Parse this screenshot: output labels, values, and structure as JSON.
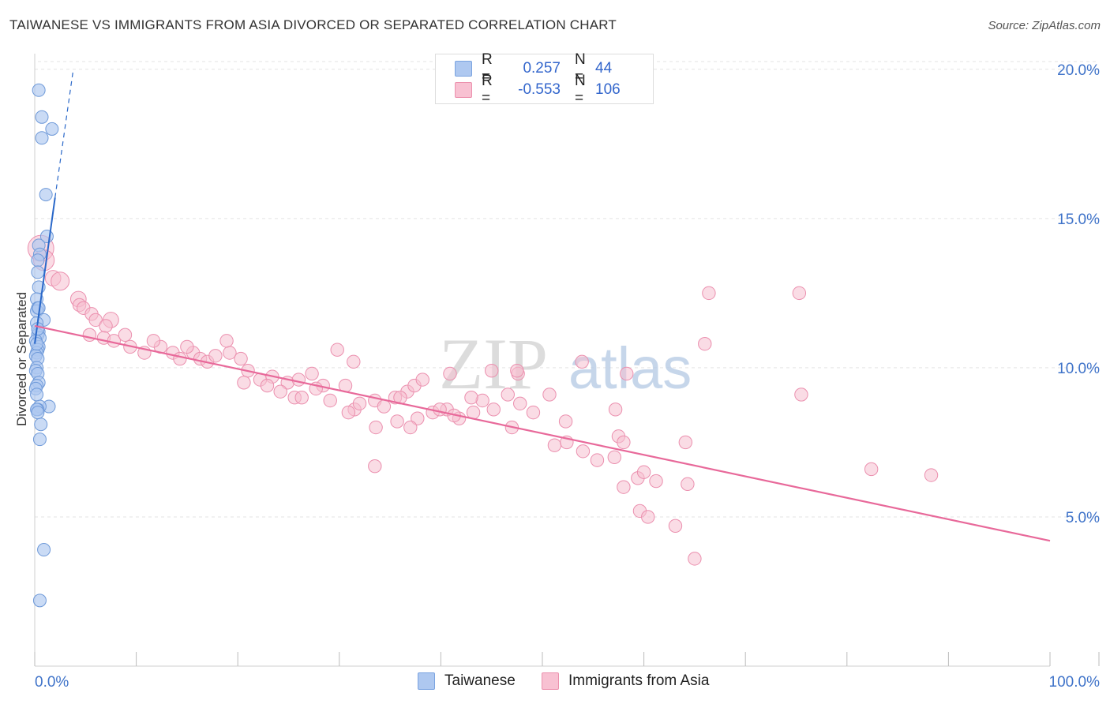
{
  "title": "TAIWANESE VS IMMIGRANTS FROM ASIA DIVORCED OR SEPARATED CORRELATION CHART",
  "source": "Source: ZipAtlas.com",
  "watermark": {
    "part1": "ZIP",
    "part2": "atlas"
  },
  "legend": {
    "r_label": "R =",
    "n_label": "N =",
    "rows": [
      {
        "r": "0.257",
        "n": "44",
        "color": "#aec8f0",
        "border": "#7aa3e0"
      },
      {
        "r": "-0.553",
        "n": "106",
        "color": "#f8c1d2",
        "border": "#ec90ad"
      }
    ]
  },
  "bottom_legend": [
    {
      "label": "Taiwanese",
      "color": "#aec8f0",
      "border": "#7aa3e0"
    },
    {
      "label": "Immigrants from Asia",
      "color": "#f8c1d2",
      "border": "#ec90ad"
    }
  ],
  "colors": {
    "blue_point": "#aec8f0",
    "blue_stroke": "#6f9ad9",
    "blue_line": "#2a68c9",
    "pink_point": "#f6bfd0",
    "pink_stroke": "#eb8fae",
    "pink_line": "#e8699a",
    "axis_text": "#3f73c9",
    "grid": "#e3e3e3"
  },
  "chart_data": {
    "type": "scatter",
    "title": "TAIWANESE VS IMMIGRANTS FROM ASIA DIVORCED OR SEPARATED CORRELATION CHART",
    "xlabel": "",
    "ylabel": "Divorced or Separated",
    "xlim": [
      0,
      100
    ],
    "ylim": [
      0,
      21
    ],
    "x_tick_labels": [
      "0.0%",
      "100.0%"
    ],
    "y_ticks": [
      5,
      10,
      15,
      20
    ],
    "y_tick_labels": [
      "5.0%",
      "10.0%",
      "15.0%",
      "20.0%"
    ],
    "series": [
      {
        "name": "Taiwanese",
        "r": 0.257,
        "n": 44,
        "trend": {
          "x0": 0.0,
          "y0": 10.8,
          "x1": 2.0,
          "y1": 15.7,
          "dash_x1": 3.8,
          "dash_y1": 20.0
        },
        "points": [
          [
            0.4,
            19.3,
            8
          ],
          [
            0.7,
            18.4,
            8
          ],
          [
            1.7,
            18.0,
            8
          ],
          [
            0.7,
            17.7,
            8
          ],
          [
            1.1,
            15.8,
            8
          ],
          [
            1.2,
            14.4,
            8
          ],
          [
            0.4,
            14.1,
            8
          ],
          [
            0.5,
            13.8,
            8
          ],
          [
            0.3,
            13.6,
            8
          ],
          [
            0.3,
            13.2,
            8
          ],
          [
            0.4,
            12.7,
            8
          ],
          [
            0.2,
            12.3,
            8
          ],
          [
            0.3,
            12.0,
            8
          ],
          [
            0.2,
            11.9,
            8
          ],
          [
            0.9,
            11.6,
            8
          ],
          [
            0.2,
            11.5,
            8
          ],
          [
            0.4,
            11.2,
            8
          ],
          [
            0.3,
            11.1,
            8
          ],
          [
            0.5,
            11.0,
            8
          ],
          [
            0.1,
            10.9,
            8
          ],
          [
            0.4,
            10.7,
            8
          ],
          [
            0.3,
            10.6,
            8
          ],
          [
            0.2,
            10.5,
            8
          ],
          [
            0.1,
            10.4,
            8
          ],
          [
            0.3,
            10.3,
            8
          ],
          [
            0.2,
            10.0,
            8
          ],
          [
            0.1,
            9.9,
            8
          ],
          [
            0.3,
            9.8,
            8
          ],
          [
            0.4,
            9.5,
            8
          ],
          [
            0.2,
            9.4,
            8
          ],
          [
            0.1,
            9.3,
            8
          ],
          [
            1.4,
            8.7,
            8
          ],
          [
            0.5,
            8.7,
            8
          ],
          [
            0.3,
            8.6,
            8
          ],
          [
            0.2,
            8.6,
            8
          ],
          [
            0.6,
            8.1,
            8
          ],
          [
            0.5,
            7.6,
            8
          ],
          [
            0.9,
            3.9,
            8
          ],
          [
            0.5,
            2.2,
            8
          ],
          [
            0.2,
            9.1,
            8
          ],
          [
            0.3,
            8.5,
            8
          ],
          [
            0.4,
            12.0,
            8
          ],
          [
            0.2,
            10.8,
            8
          ],
          [
            0.3,
            11.3,
            8
          ]
        ]
      },
      {
        "name": "Immigrants from Asia",
        "r": -0.553,
        "n": 106,
        "trend": {
          "x0": 0.0,
          "y0": 11.4,
          "x1": 100.0,
          "y1": 4.2
        },
        "points": [
          [
            0.6,
            14.0,
            20
          ],
          [
            0.9,
            13.6,
            16
          ],
          [
            1.8,
            13.0,
            12
          ],
          [
            2.5,
            12.9,
            14
          ],
          [
            4.3,
            12.3,
            12
          ],
          [
            4.4,
            12.1,
            10
          ],
          [
            4.8,
            12.0,
            10
          ],
          [
            5.6,
            11.8,
            10
          ],
          [
            6.0,
            11.6,
            10
          ],
          [
            7.5,
            11.6,
            12
          ],
          [
            7.0,
            11.4,
            10
          ],
          [
            5.4,
            11.1,
            10
          ],
          [
            6.8,
            11.0,
            10
          ],
          [
            7.8,
            10.9,
            10
          ],
          [
            8.9,
            11.1,
            10
          ],
          [
            9.4,
            10.7,
            10
          ],
          [
            10.8,
            10.5,
            10
          ],
          [
            12.4,
            10.7,
            10
          ],
          [
            13.6,
            10.5,
            10
          ],
          [
            11.7,
            10.9,
            10
          ],
          [
            14.3,
            10.3,
            10
          ],
          [
            15.6,
            10.5,
            10
          ],
          [
            16.3,
            10.3,
            10
          ],
          [
            15.0,
            10.7,
            10
          ],
          [
            17.0,
            10.2,
            10
          ],
          [
            17.8,
            10.4,
            10
          ],
          [
            19.2,
            10.5,
            10
          ],
          [
            18.9,
            10.9,
            10
          ],
          [
            20.3,
            10.3,
            10
          ],
          [
            21.0,
            9.9,
            10
          ],
          [
            22.2,
            9.6,
            10
          ],
          [
            23.4,
            9.7,
            10
          ],
          [
            24.9,
            9.5,
            10
          ],
          [
            26.0,
            9.6,
            10
          ],
          [
            27.3,
            9.8,
            10
          ],
          [
            24.2,
            9.2,
            10
          ],
          [
            22.9,
            9.4,
            10
          ],
          [
            20.6,
            9.5,
            10
          ],
          [
            25.6,
            9.0,
            10
          ],
          [
            28.4,
            9.4,
            10
          ],
          [
            29.1,
            8.9,
            10
          ],
          [
            29.8,
            10.6,
            10
          ],
          [
            30.6,
            9.4,
            10
          ],
          [
            31.5,
            8.6,
            10
          ],
          [
            32.0,
            8.8,
            10
          ],
          [
            33.5,
            8.9,
            10
          ],
          [
            34.4,
            8.7,
            10
          ],
          [
            35.5,
            9.0,
            10
          ],
          [
            36.7,
            9.2,
            10
          ],
          [
            37.4,
            9.4,
            10
          ],
          [
            38.2,
            9.6,
            10
          ],
          [
            39.2,
            8.5,
            10
          ],
          [
            40.6,
            8.6,
            10
          ],
          [
            41.8,
            8.3,
            10
          ],
          [
            43.2,
            8.5,
            10
          ],
          [
            44.1,
            8.9,
            10
          ],
          [
            45.2,
            8.6,
            10
          ],
          [
            46.6,
            9.1,
            10
          ],
          [
            47.8,
            8.8,
            10
          ],
          [
            49.1,
            8.5,
            10
          ],
          [
            35.7,
            8.2,
            10
          ],
          [
            37.7,
            8.3,
            10
          ],
          [
            39.9,
            8.6,
            10
          ],
          [
            41.3,
            8.4,
            10
          ],
          [
            43.0,
            9.0,
            10
          ],
          [
            45.0,
            9.9,
            10
          ],
          [
            47.6,
            9.8,
            10
          ],
          [
            31.4,
            10.2,
            10
          ],
          [
            36.0,
            9.0,
            10
          ],
          [
            33.6,
            8.0,
            10
          ],
          [
            27.7,
            9.3,
            10
          ],
          [
            26.3,
            9.0,
            10
          ],
          [
            30.9,
            8.5,
            10
          ],
          [
            37.0,
            8.0,
            10
          ],
          [
            40.9,
            9.8,
            10
          ],
          [
            47.5,
            9.9,
            10
          ],
          [
            50.7,
            9.1,
            10
          ],
          [
            52.3,
            8.2,
            10
          ],
          [
            53.9,
            10.2,
            10
          ],
          [
            57.2,
            8.6,
            10
          ],
          [
            58.3,
            9.8,
            10
          ],
          [
            57.5,
            7.7,
            10
          ],
          [
            58.0,
            7.5,
            10
          ],
          [
            51.2,
            7.4,
            10
          ],
          [
            52.4,
            7.5,
            10
          ],
          [
            54.0,
            7.2,
            10
          ],
          [
            55.4,
            6.9,
            10
          ],
          [
            57.1,
            7.0,
            10
          ],
          [
            59.4,
            6.3,
            10
          ],
          [
            60.0,
            6.5,
            10
          ],
          [
            61.2,
            6.2,
            10
          ],
          [
            58.0,
            6.0,
            10
          ],
          [
            59.6,
            5.2,
            10
          ],
          [
            60.4,
            5.0,
            10
          ],
          [
            63.1,
            4.7,
            10
          ],
          [
            64.1,
            7.5,
            10
          ],
          [
            64.3,
            6.1,
            10
          ],
          [
            65.0,
            3.6,
            10
          ],
          [
            66.0,
            10.8,
            10
          ],
          [
            66.4,
            12.5,
            10
          ],
          [
            75.3,
            12.5,
            10
          ],
          [
            75.5,
            9.1,
            10
          ],
          [
            82.4,
            6.6,
            10
          ],
          [
            88.3,
            6.4,
            10
          ],
          [
            33.5,
            6.7,
            10
          ],
          [
            47.0,
            8.0,
            10
          ]
        ]
      }
    ]
  }
}
